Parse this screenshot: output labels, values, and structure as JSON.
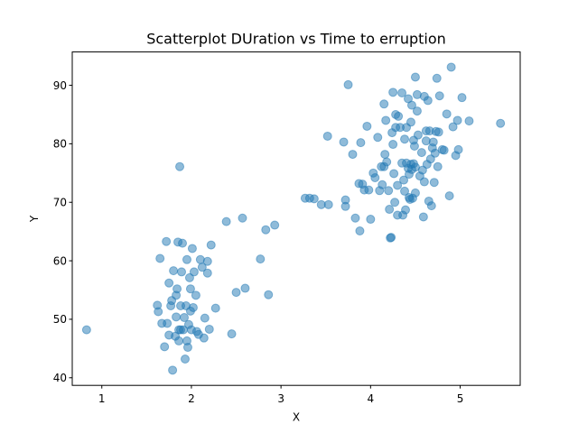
{
  "chart_data": {
    "type": "scatter",
    "title": "Scatterplot DUration vs Time to erruption",
    "xlabel": "X",
    "ylabel": "Y",
    "xlim": [
      0.67,
      5.67
    ],
    "ylim": [
      38.7,
      95.7
    ],
    "x_ticks": [
      1,
      2,
      3,
      4,
      5
    ],
    "x_tick_labels": [
      "1",
      "2",
      "3",
      "4",
      "5"
    ],
    "y_ticks": [
      40,
      50,
      60,
      70,
      80,
      90
    ],
    "y_tick_labels": [
      "40",
      "50",
      "60",
      "70",
      "80",
      "90"
    ],
    "grid": false,
    "legend": "none",
    "marker_color": "#1f77b4",
    "marker_alpha": 0.5,
    "series": [
      {
        "points": [
          [
            0.83,
            48.2
          ],
          [
            1.62,
            52.4
          ],
          [
            1.63,
            51.3
          ],
          [
            1.65,
            60.4
          ],
          [
            1.67,
            49.3
          ],
          [
            1.7,
            45.3
          ],
          [
            1.72,
            63.3
          ],
          [
            1.73,
            49.3
          ],
          [
            1.75,
            47.3
          ],
          [
            1.75,
            56.2
          ],
          [
            1.77,
            52.3
          ],
          [
            1.78,
            53.2
          ],
          [
            1.79,
            41.3
          ],
          [
            1.8,
            58.3
          ],
          [
            1.82,
            47.1
          ],
          [
            1.83,
            50.4
          ],
          [
            1.83,
            54.1
          ],
          [
            1.84,
            55.2
          ],
          [
            1.85,
            63.2
          ],
          [
            1.86,
            48.2
          ],
          [
            1.86,
            46.3
          ],
          [
            1.87,
            76.1
          ],
          [
            1.88,
            48.2
          ],
          [
            1.88,
            52.3
          ],
          [
            1.89,
            58.1
          ],
          [
            1.9,
            63.0
          ],
          [
            1.91,
            48.2
          ],
          [
            1.92,
            50.3
          ],
          [
            1.93,
            43.2
          ],
          [
            1.94,
            52.3
          ],
          [
            1.95,
            46.3
          ],
          [
            1.95,
            60.2
          ],
          [
            1.96,
            45.2
          ],
          [
            1.97,
            49.1
          ],
          [
            1.98,
            57.1
          ],
          [
            1.99,
            55.2
          ],
          [
            1.99,
            51.4
          ],
          [
            2.0,
            48.2
          ],
          [
            2.01,
            62.1
          ],
          [
            2.02,
            52.0
          ],
          [
            2.03,
            58.1
          ],
          [
            2.05,
            54.1
          ],
          [
            2.06,
            47.9
          ],
          [
            2.08,
            47.4
          ],
          [
            2.1,
            60.2
          ],
          [
            2.12,
            58.9
          ],
          [
            2.14,
            46.8
          ],
          [
            2.15,
            50.2
          ],
          [
            2.18,
            59.9
          ],
          [
            2.18,
            57.9
          ],
          [
            2.2,
            48.3
          ],
          [
            2.22,
            62.7
          ],
          [
            2.27,
            51.9
          ],
          [
            2.39,
            66.7
          ],
          [
            2.45,
            47.5
          ],
          [
            2.5,
            54.6
          ],
          [
            2.57,
            67.3
          ],
          [
            2.6,
            55.3
          ],
          [
            2.77,
            60.3
          ],
          [
            2.83,
            65.3
          ],
          [
            2.86,
            54.2
          ],
          [
            2.93,
            66.1
          ],
          [
            3.27,
            70.7
          ],
          [
            3.32,
            70.7
          ],
          [
            3.37,
            70.6
          ],
          [
            3.45,
            69.6
          ],
          [
            3.52,
            81.3
          ],
          [
            3.53,
            69.6
          ],
          [
            3.7,
            80.3
          ],
          [
            3.72,
            70.4
          ],
          [
            3.72,
            69.3
          ],
          [
            3.75,
            90.1
          ],
          [
            3.8,
            78.2
          ],
          [
            3.83,
            67.3
          ],
          [
            3.87,
            73.2
          ],
          [
            3.88,
            65.1
          ],
          [
            3.89,
            80.2
          ],
          [
            3.91,
            73.1
          ],
          [
            3.93,
            72.1
          ],
          [
            3.96,
            83.0
          ],
          [
            3.98,
            72.1
          ],
          [
            4.0,
            67.1
          ],
          [
            4.03,
            75.0
          ],
          [
            4.05,
            74.2
          ],
          [
            4.08,
            81.1
          ],
          [
            4.1,
            72.0
          ],
          [
            4.12,
            76.1
          ],
          [
            4.13,
            73.0
          ],
          [
            4.15,
            86.8
          ],
          [
            4.15,
            76.1
          ],
          [
            4.16,
            78.2
          ],
          [
            4.17,
            84.0
          ],
          [
            4.18,
            76.9
          ],
          [
            4.2,
            72.0
          ],
          [
            4.21,
            68.8
          ],
          [
            4.22,
            63.9
          ],
          [
            4.23,
            64.0
          ],
          [
            4.24,
            81.9
          ],
          [
            4.25,
            88.8
          ],
          [
            4.25,
            79.9
          ],
          [
            4.26,
            74.9
          ],
          [
            4.27,
            70.0
          ],
          [
            4.28,
            82.8
          ],
          [
            4.28,
            85.0
          ],
          [
            4.3,
            72.9
          ],
          [
            4.3,
            67.8
          ],
          [
            4.31,
            84.7
          ],
          [
            4.33,
            82.8
          ],
          [
            4.35,
            88.7
          ],
          [
            4.35,
            76.7
          ],
          [
            4.36,
            67.8
          ],
          [
            4.37,
            73.8
          ],
          [
            4.38,
            80.8
          ],
          [
            4.38,
            71.9
          ],
          [
            4.39,
            68.7
          ],
          [
            4.4,
            76.7
          ],
          [
            4.4,
            82.8
          ],
          [
            4.42,
            87.7
          ],
          [
            4.42,
            75.8
          ],
          [
            4.43,
            70.8
          ],
          [
            4.43,
            74.8
          ],
          [
            4.44,
            70.5
          ],
          [
            4.45,
            76.5
          ],
          [
            4.45,
            83.7
          ],
          [
            4.46,
            75.6
          ],
          [
            4.46,
            86.6
          ],
          [
            4.47,
            70.7
          ],
          [
            4.48,
            76.6
          ],
          [
            4.48,
            80.6
          ],
          [
            4.49,
            79.6
          ],
          [
            4.5,
            91.4
          ],
          [
            4.5,
            76.0
          ],
          [
            4.5,
            71.6
          ],
          [
            4.52,
            88.4
          ],
          [
            4.52,
            85.6
          ],
          [
            4.53,
            81.5
          ],
          [
            4.55,
            74.5
          ],
          [
            4.57,
            78.5
          ],
          [
            4.58,
            75.5
          ],
          [
            4.59,
            67.5
          ],
          [
            4.6,
            88.1
          ],
          [
            4.6,
            73.5
          ],
          [
            4.62,
            80.5
          ],
          [
            4.62,
            82.2
          ],
          [
            4.63,
            76.5
          ],
          [
            4.64,
            87.4
          ],
          [
            4.65,
            70.2
          ],
          [
            4.66,
            82.2
          ],
          [
            4.67,
            77.4
          ],
          [
            4.68,
            69.4
          ],
          [
            4.69,
            79.3
          ],
          [
            4.7,
            80.3
          ],
          [
            4.71,
            73.4
          ],
          [
            4.72,
            78.4
          ],
          [
            4.73,
            82.1
          ],
          [
            4.74,
            91.2
          ],
          [
            4.75,
            76.1
          ],
          [
            4.76,
            82.0
          ],
          [
            4.77,
            88.2
          ],
          [
            4.8,
            79.0
          ],
          [
            4.82,
            78.9
          ],
          [
            4.85,
            85.1
          ],
          [
            4.88,
            71.1
          ],
          [
            4.9,
            93.1
          ],
          [
            4.92,
            82.9
          ],
          [
            4.95,
            78.0
          ],
          [
            4.97,
            84.0
          ],
          [
            4.98,
            79.0
          ],
          [
            5.02,
            87.9
          ],
          [
            5.1,
            83.9
          ],
          [
            5.45,
            83.5
          ]
        ]
      }
    ]
  }
}
